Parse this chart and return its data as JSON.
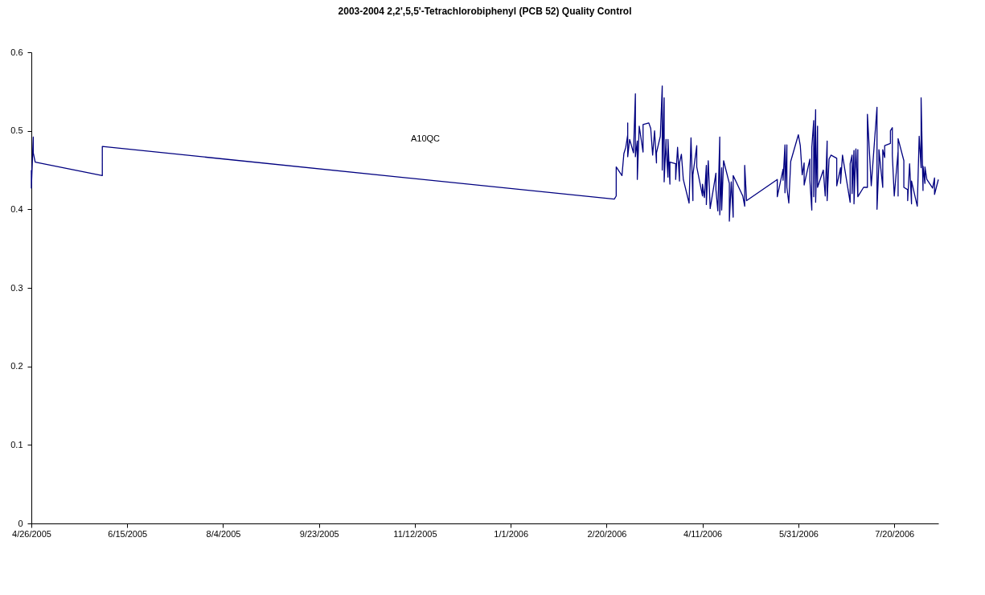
{
  "chart_data": {
    "type": "line",
    "title": "2003-2004 2,2',5,5'-Tetrachlorobiphenyl (PCB 52) Quality Control",
    "x": [
      "2005-04-26",
      "2005-04-26",
      "2005-04-27",
      "2005-04-27",
      "2005-04-28",
      "2005-06-02",
      "2005-06-02",
      "2006-02-24",
      "2006-02-25",
      "2006-02-25",
      "2006-02-28",
      "2006-03-01",
      "2006-03-02",
      "2006-03-03",
      "2006-03-03",
      "2006-03-03",
      "2006-03-04",
      "2006-03-06",
      "2006-03-07",
      "2006-03-07",
      "2006-03-08",
      "2006-03-08",
      "2006-03-09",
      "2006-03-11",
      "2006-03-11",
      "2006-03-14",
      "2006-03-15",
      "2006-03-16",
      "2006-03-17",
      "2006-03-18",
      "2006-03-18",
      "2006-03-20",
      "2006-03-21",
      "2006-03-21",
      "2006-03-22",
      "2006-03-22",
      "2006-03-23",
      "2006-03-23",
      "2006-03-24",
      "2006-03-24",
      "2006-03-25",
      "2006-03-25",
      "2006-03-28",
      "2006-03-28",
      "2006-03-29",
      "2006-03-30",
      "2006-03-30",
      "2006-03-31",
      "2006-04-01",
      "2006-04-04",
      "2006-04-05",
      "2006-04-06",
      "2006-04-06",
      "2006-04-08",
      "2006-04-08",
      "2006-04-11",
      "2006-04-11",
      "2006-04-12",
      "2006-04-13",
      "2006-04-13",
      "2006-04-14",
      "2006-04-15",
      "2006-04-18",
      "2006-04-18",
      "2006-04-19",
      "2006-04-20",
      "2006-04-20",
      "2006-04-21",
      "2006-04-21",
      "2006-04-22",
      "2006-04-25",
      "2006-04-25",
      "2006-04-26",
      "2006-04-27",
      "2006-04-27",
      "2006-05-02",
      "2006-05-03",
      "2006-05-03",
      "2006-05-04",
      "2006-05-20",
      "2006-05-20",
      "2006-05-23",
      "2006-05-23",
      "2006-05-24",
      "2006-05-24",
      "2006-05-25",
      "2006-05-25",
      "2006-05-26",
      "2006-05-27",
      "2006-05-31",
      "2006-06-01",
      "2006-06-02",
      "2006-06-03",
      "2006-06-03",
      "2006-06-06",
      "2006-06-06",
      "2006-06-07",
      "2006-06-07",
      "2006-06-08",
      "2006-06-08",
      "2006-06-09",
      "2006-06-09",
      "2006-06-10",
      "2006-06-10",
      "2006-06-13",
      "2006-06-14",
      "2006-06-15",
      "2006-06-15",
      "2006-06-16",
      "2006-06-17",
      "2006-06-20",
      "2006-06-20",
      "2006-06-22",
      "2006-06-22",
      "2006-06-23",
      "2006-06-27",
      "2006-06-27",
      "2006-06-28",
      "2006-06-28",
      "2006-06-29",
      "2006-06-29",
      "2006-06-30",
      "2006-07-01",
      "2006-07-01",
      "2006-07-01",
      "2006-07-04",
      "2006-07-06",
      "2006-07-06",
      "2006-07-08",
      "2006-07-11",
      "2006-07-11",
      "2006-07-12",
      "2006-07-12",
      "2006-07-14",
      "2006-07-14",
      "2006-07-15",
      "2006-07-15",
      "2006-07-18",
      "2006-07-18",
      "2006-07-19",
      "2006-07-19",
      "2006-07-20",
      "2006-07-22",
      "2006-07-22",
      "2006-07-22",
      "2006-07-25",
      "2006-07-25",
      "2006-07-27",
      "2006-07-27",
      "2006-07-28",
      "2006-07-29",
      "2006-07-29",
      "2006-08-01",
      "2006-08-02",
      "2006-08-03",
      "2006-08-03",
      "2006-08-04",
      "2006-08-04",
      "2006-08-05",
      "2006-08-05",
      "2006-08-06",
      "2006-08-09",
      "2006-08-10",
      "2006-08-10",
      "2006-08-12"
    ],
    "series": [
      {
        "color": "#000080",
        "values": [
          0.45,
          0.427,
          0.492,
          0.472,
          0.46,
          0.443,
          0.48,
          0.413,
          0.417,
          0.454,
          0.443,
          0.471,
          0.479,
          0.495,
          0.51,
          0.467,
          0.489,
          0.472,
          0.547,
          0.467,
          0.487,
          0.438,
          0.506,
          0.473,
          0.508,
          0.51,
          0.503,
          0.469,
          0.5,
          0.459,
          0.472,
          0.493,
          0.557,
          0.45,
          0.542,
          0.435,
          0.489,
          0.479,
          0.441,
          0.489,
          0.432,
          0.46,
          0.458,
          0.438,
          0.479,
          0.436,
          0.459,
          0.47,
          0.438,
          0.408,
          0.491,
          0.411,
          0.444,
          0.481,
          0.454,
          0.417,
          0.432,
          0.415,
          0.456,
          0.406,
          0.462,
          0.401,
          0.446,
          0.425,
          0.398,
          0.492,
          0.393,
          0.453,
          0.399,
          0.462,
          0.433,
          0.385,
          0.435,
          0.39,
          0.443,
          0.417,
          0.404,
          0.456,
          0.411,
          0.438,
          0.416,
          0.451,
          0.437,
          0.482,
          0.421,
          0.482,
          0.428,
          0.408,
          0.461,
          0.495,
          0.481,
          0.444,
          0.459,
          0.431,
          0.464,
          0.437,
          0.399,
          0.479,
          0.513,
          0.416,
          0.527,
          0.409,
          0.506,
          0.428,
          0.45,
          0.417,
          0.487,
          0.411,
          0.464,
          0.469,
          0.465,
          0.43,
          0.453,
          0.433,
          0.469,
          0.409,
          0.458,
          0.469,
          0.42,
          0.475,
          0.407,
          0.477,
          0.416,
          0.476,
          0.416,
          0.428,
          0.428,
          0.521,
          0.43,
          0.53,
          0.4,
          0.459,
          0.476,
          0.428,
          0.476,
          0.466,
          0.481,
          0.484,
          0.5,
          0.504,
          0.469,
          0.417,
          0.474,
          0.417,
          0.49,
          0.462,
          0.428,
          0.425,
          0.411,
          0.458,
          0.407,
          0.436,
          0.404,
          0.493,
          0.453,
          0.542,
          0.424,
          0.455,
          0.433,
          0.454,
          0.438,
          0.427,
          0.44,
          0.419,
          0.438
        ]
      }
    ],
    "xlim": [
      "2005-04-26",
      "2006-08-12"
    ],
    "xticks": [
      {
        "value": "2005-04-26",
        "label": "4/26/2005"
      },
      {
        "value": "2005-06-15",
        "label": "6/15/2005"
      },
      {
        "value": "2005-08-04",
        "label": "8/4/2005"
      },
      {
        "value": "2005-09-23",
        "label": "9/23/2005"
      },
      {
        "value": "2005-11-12",
        "label": "11/12/2005"
      },
      {
        "value": "2006-01-01",
        "label": "1/1/2006"
      },
      {
        "value": "2006-02-20",
        "label": "2/20/2006"
      },
      {
        "value": "2006-04-11",
        "label": "4/11/2006"
      },
      {
        "value": "2006-05-31",
        "label": "5/31/2006"
      },
      {
        "value": "2006-07-20",
        "label": "7/20/2006"
      }
    ],
    "ylim": [
      0,
      0.6
    ],
    "yticks": [
      0,
      0.1,
      0.2,
      0.3,
      0.4,
      0.5,
      0.6
    ],
    "annotations": [
      "A10QC"
    ],
    "grid": false,
    "legend": false,
    "marker": "none",
    "line_style": "solid"
  }
}
